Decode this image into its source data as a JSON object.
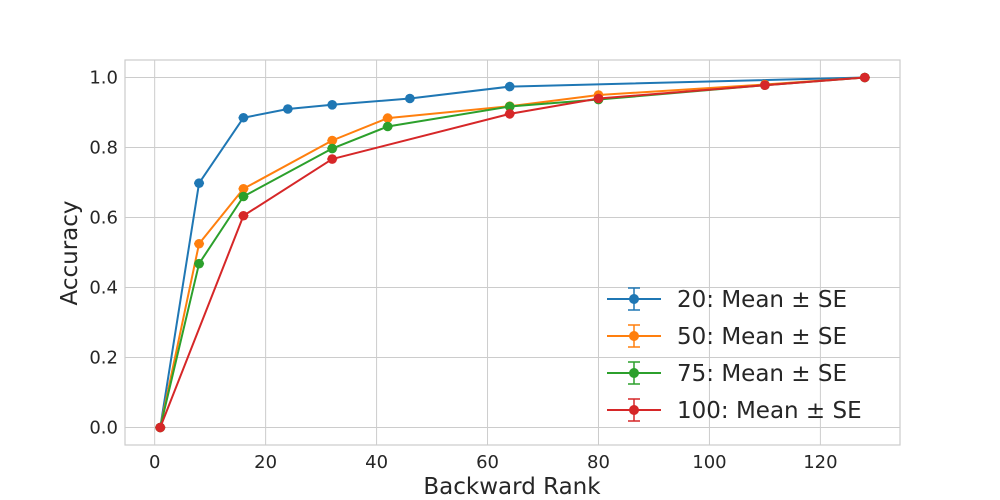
{
  "chart_data": {
    "type": "line",
    "title": "",
    "xlabel": "Backward Rank",
    "ylabel": "Accuracy",
    "xlim": [
      -5.35,
      134.35
    ],
    "ylim": [
      -0.05,
      1.05
    ],
    "xticks": [
      0,
      20,
      40,
      60,
      80,
      100,
      120
    ],
    "yticks": [
      0.0,
      0.2,
      0.4,
      0.6,
      0.8,
      1.0
    ],
    "xtick_labels": [
      "0",
      "20",
      "40",
      "60",
      "80",
      "100",
      "120"
    ],
    "ytick_labels": [
      "0.0",
      "0.2",
      "0.4",
      "0.6",
      "0.8",
      "1.0"
    ],
    "grid": true,
    "legend_position": "lower-right",
    "series": [
      {
        "name": "20: Mean ± SE",
        "color": "#1f77b4",
        "x": [
          1,
          8,
          16,
          24,
          32,
          46,
          64,
          128
        ],
        "y": [
          0.0,
          0.698,
          0.885,
          0.91,
          0.922,
          0.94,
          0.974,
          1.0
        ]
      },
      {
        "name": "50: Mean ± SE",
        "color": "#ff7f0e",
        "x": [
          1,
          8,
          16,
          32,
          42,
          64,
          80,
          110,
          128
        ],
        "y": [
          0.0,
          0.525,
          0.682,
          0.82,
          0.884,
          0.918,
          0.95,
          0.98,
          1.0
        ]
      },
      {
        "name": "75: Mean ± SE",
        "color": "#2ca02c",
        "x": [
          1,
          8,
          16,
          32,
          42,
          64,
          80,
          110,
          128
        ],
        "y": [
          0.0,
          0.468,
          0.66,
          0.797,
          0.86,
          0.917,
          0.937,
          0.978,
          1.0
        ]
      },
      {
        "name": "100: Mean ± SE",
        "color": "#d62728",
        "x": [
          1,
          16,
          32,
          64,
          80,
          110,
          128
        ],
        "y": [
          0.0,
          0.605,
          0.767,
          0.896,
          0.94,
          0.978,
          1.0
        ]
      }
    ]
  }
}
